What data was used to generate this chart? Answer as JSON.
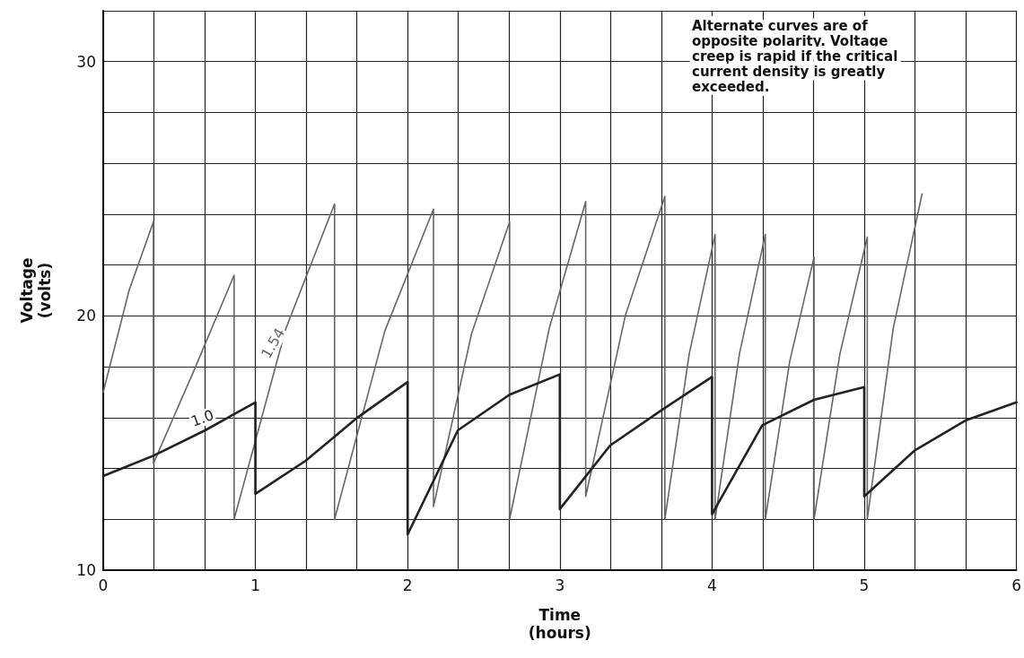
{
  "chart_data": {
    "type": "line",
    "xlabel": "Time\n(hours)",
    "ylabel": "Voltage\n(volts)",
    "xlim": [
      0,
      6
    ],
    "xticks": [
      0,
      1,
      2,
      3,
      4,
      5,
      6
    ],
    "ylim": [
      10,
      32
    ],
    "yticks": [
      10,
      {
        "value": 12,
        "label": null
      },
      {
        "value": 14,
        "label": null
      },
      {
        "value": 16,
        "label": null
      },
      {
        "value": 18,
        "label": null
      },
      20,
      {
        "value": 22,
        "label": null
      },
      {
        "value": 24,
        "label": null
      },
      {
        "value": 26,
        "label": null
      },
      {
        "value": 28,
        "label": null
      },
      30,
      {
        "value": 32,
        "label": null
      }
    ],
    "grid": true,
    "legend": false,
    "marker": "none",
    "line_style": "solid",
    "annotations": [
      "Alternate curves are of opposite polarity. Voltage creep is rapid if the critical current density is greatly exceeded."
    ],
    "series": [
      {
        "name": "1.0",
        "color": "#222222",
        "x": [
          0,
          0.33,
          0.67,
          1,
          1,
          1.33,
          1.67,
          2,
          2,
          2.33,
          2.67,
          3,
          3,
          3.33,
          3.67,
          4,
          4,
          4.33,
          4.67,
          5,
          5,
          5.33,
          5.67,
          6
        ],
        "values": [
          13.7,
          14.5,
          15.5,
          16.6,
          13.0,
          14.3,
          16.0,
          17.4,
          11.4,
          15.5,
          16.9,
          17.7,
          12.4,
          14.9,
          16.3,
          17.6,
          12.2,
          15.7,
          16.7,
          17.2,
          12.9,
          14.7,
          15.9,
          16.6
        ]
      },
      {
        "name": "1.54",
        "color": "#666666",
        "x": [
          0,
          0.17,
          0.33,
          0.33,
          0.6,
          0.86,
          0.86,
          1.2,
          1.52,
          1.52,
          1.85,
          2.17,
          2.17,
          2.42,
          2.67,
          2.67,
          2.93,
          3.17,
          3.17,
          3.43,
          3.69,
          3.69,
          3.85,
          4.02,
          4.02,
          4.18,
          4.35,
          4.35,
          4.51,
          4.67,
          4.67,
          4.84,
          5.02,
          5.02,
          5.19,
          5.38
        ],
        "values": [
          17.0,
          21.0,
          23.7,
          14.2,
          17.9,
          21.6,
          12.0,
          19.5,
          24.4,
          12.0,
          19.4,
          24.2,
          12.5,
          19.3,
          23.7,
          12.0,
          19.5,
          24.5,
          12.9,
          20.0,
          24.7,
          12.0,
          18.5,
          23.2,
          12.0,
          18.5,
          23.2,
          12.0,
          18.2,
          22.3,
          12.0,
          18.5,
          23.1,
          12.0,
          19.5,
          24.8
        ]
      }
    ]
  }
}
